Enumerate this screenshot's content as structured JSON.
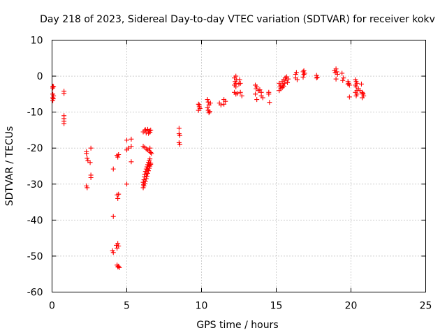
{
  "chart_data": {
    "type": "scatter",
    "title": "Day 218 of 2023, Sidereal Day-to-day VTEC variation (SDTVAR) for receiver kokv",
    "xlabel": "GPS time / hours",
    "ylabel": "SDTVAR / TECUs",
    "xlim": [
      0,
      25
    ],
    "ylim": [
      -60,
      10
    ],
    "xticks": [
      0,
      5,
      10,
      15,
      20,
      25
    ],
    "yticks": [
      10,
      0,
      -10,
      -20,
      -30,
      -40,
      -50,
      -60
    ],
    "grid": true,
    "marker": "+",
    "marker_color": "#ff0000",
    "series": [
      {
        "name": "SDTVAR",
        "points": [
          [
            0.05,
            -2.8
          ],
          [
            0.05,
            -3.3
          ],
          [
            0.05,
            -5.0
          ],
          [
            0.05,
            -6.0
          ],
          [
            0.05,
            -6.8
          ],
          [
            0.1,
            -2.9
          ],
          [
            0.1,
            -5.5
          ],
          [
            0.08,
            -6.3
          ],
          [
            0.8,
            -4.2
          ],
          [
            0.8,
            -4.8
          ],
          [
            0.8,
            -11.0
          ],
          [
            0.8,
            -11.8
          ],
          [
            0.8,
            -12.5
          ],
          [
            0.8,
            -13.2
          ],
          [
            2.3,
            -21.0
          ],
          [
            2.3,
            -21.5
          ],
          [
            2.35,
            -22.8
          ],
          [
            2.4,
            -23.5
          ],
          [
            2.55,
            -24.0
          ],
          [
            2.6,
            -20.0
          ],
          [
            2.6,
            -27.5
          ],
          [
            2.6,
            -28.2
          ],
          [
            2.3,
            -30.5
          ],
          [
            2.35,
            -31.0
          ],
          [
            4.1,
            -25.8
          ],
          [
            4.1,
            -39.0
          ],
          [
            4.05,
            -48.5
          ],
          [
            4.1,
            -49.0
          ],
          [
            4.35,
            -22.0
          ],
          [
            4.4,
            -22.5
          ],
          [
            4.45,
            -21.8
          ],
          [
            4.35,
            -33.0
          ],
          [
            4.4,
            -34.0
          ],
          [
            4.45,
            -32.8
          ],
          [
            4.3,
            -47.0
          ],
          [
            4.35,
            -47.8
          ],
          [
            4.4,
            -46.5
          ],
          [
            4.45,
            -47.2
          ],
          [
            4.35,
            -52.5
          ],
          [
            4.4,
            -53.0
          ],
          [
            4.45,
            -52.8
          ],
          [
            4.5,
            -53.2
          ],
          [
            5.0,
            -17.8
          ],
          [
            5.0,
            -20.5
          ],
          [
            5.1,
            -20.0
          ],
          [
            5.0,
            -30.0
          ],
          [
            5.3,
            -17.5
          ],
          [
            5.3,
            -19.5
          ],
          [
            5.3,
            -23.8
          ],
          [
            6.1,
            -15.5
          ],
          [
            6.2,
            -15.0
          ],
          [
            6.3,
            -15.8
          ],
          [
            6.4,
            -14.8
          ],
          [
            6.5,
            -15.2
          ],
          [
            6.55,
            -15.6
          ],
          [
            6.6,
            -15.0
          ],
          [
            6.25,
            -14.9
          ],
          [
            6.45,
            -15.9
          ],
          [
            6.1,
            -19.5
          ],
          [
            6.2,
            -19.8
          ],
          [
            6.3,
            -20.2
          ],
          [
            6.4,
            -20.5
          ],
          [
            6.5,
            -20.8
          ],
          [
            6.6,
            -21.2
          ],
          [
            6.65,
            -21.5
          ],
          [
            6.55,
            -20.0
          ],
          [
            6.1,
            -29.5
          ],
          [
            6.12,
            -30.2
          ],
          [
            6.1,
            -31.0
          ],
          [
            6.15,
            -28.8
          ],
          [
            6.18,
            -28.0
          ],
          [
            6.2,
            -27.3
          ],
          [
            6.25,
            -26.5
          ],
          [
            6.3,
            -25.8
          ],
          [
            6.35,
            -25.2
          ],
          [
            6.4,
            -24.6
          ],
          [
            6.45,
            -24.0
          ],
          [
            6.5,
            -23.5
          ],
          [
            6.55,
            -23.0
          ],
          [
            6.6,
            -24.2
          ],
          [
            6.25,
            -29.2
          ],
          [
            6.3,
            -28.5
          ],
          [
            6.35,
            -27.8
          ],
          [
            6.4,
            -27.0
          ],
          [
            6.45,
            -26.3
          ],
          [
            6.5,
            -25.6
          ],
          [
            6.55,
            -25.0
          ],
          [
            6.6,
            -24.5
          ],
          [
            6.15,
            -30.5
          ],
          [
            6.2,
            -29.8
          ],
          [
            6.3,
            -27.2
          ],
          [
            6.4,
            -26.0
          ],
          [
            6.5,
            -24.8
          ],
          [
            8.5,
            -14.5
          ],
          [
            8.5,
            -16.0
          ],
          [
            8.55,
            -16.5
          ],
          [
            8.5,
            -18.5
          ],
          [
            8.55,
            -19.0
          ],
          [
            9.8,
            -7.8
          ],
          [
            9.85,
            -8.5
          ],
          [
            9.9,
            -9.0
          ],
          [
            9.8,
            -9.5
          ],
          [
            9.85,
            -8.0
          ],
          [
            10.4,
            -6.5
          ],
          [
            10.45,
            -7.2
          ],
          [
            10.5,
            -8.0
          ],
          [
            10.4,
            -8.8
          ],
          [
            10.45,
            -9.5
          ],
          [
            10.5,
            -10.2
          ],
          [
            10.55,
            -9.8
          ],
          [
            10.6,
            -7.5
          ],
          [
            11.2,
            -7.5
          ],
          [
            11.3,
            -8.0
          ],
          [
            11.5,
            -6.5
          ],
          [
            11.6,
            -7.0
          ],
          [
            11.5,
            -7.8
          ],
          [
            12.2,
            -0.5
          ],
          [
            12.25,
            -1.5
          ],
          [
            12.3,
            -2.0
          ],
          [
            12.35,
            -1.0
          ],
          [
            12.2,
            -2.5
          ],
          [
            12.3,
            -3.0
          ],
          [
            12.2,
            -4.5
          ],
          [
            12.3,
            -5.0
          ],
          [
            12.4,
            -4.8
          ],
          [
            12.5,
            -2.2
          ],
          [
            12.55,
            -1.0
          ],
          [
            12.6,
            -2.0
          ],
          [
            12.6,
            -4.5
          ],
          [
            12.7,
            -5.5
          ],
          [
            12.3,
            0.0
          ],
          [
            13.6,
            -2.5
          ],
          [
            13.7,
            -3.0
          ],
          [
            13.65,
            -3.5
          ],
          [
            13.6,
            -5.0
          ],
          [
            13.7,
            -6.5
          ],
          [
            13.8,
            -4.0
          ],
          [
            13.9,
            -3.8
          ],
          [
            14.0,
            -4.5
          ],
          [
            14.0,
            -5.5
          ],
          [
            14.1,
            -6.0
          ],
          [
            14.5,
            -5.0
          ],
          [
            14.55,
            -7.3
          ],
          [
            14.5,
            -4.5
          ],
          [
            15.2,
            -2.0
          ],
          [
            15.25,
            -3.0
          ],
          [
            15.3,
            -3.5
          ],
          [
            15.2,
            -4.0
          ],
          [
            15.3,
            -2.5
          ],
          [
            15.4,
            -1.5
          ],
          [
            15.45,
            -2.5
          ],
          [
            15.5,
            -1.0
          ],
          [
            15.55,
            -2.0
          ],
          [
            15.6,
            -0.5
          ],
          [
            15.65,
            -1.2
          ],
          [
            15.7,
            -0.2
          ],
          [
            15.75,
            -1.8
          ],
          [
            15.8,
            -0.8
          ],
          [
            15.4,
            -3.2
          ],
          [
            15.5,
            -2.8
          ],
          [
            16.3,
            0.5
          ],
          [
            16.35,
            1.0
          ],
          [
            16.3,
            -0.5
          ],
          [
            16.4,
            -1.0
          ],
          [
            16.8,
            1.2
          ],
          [
            16.85,
            0.5
          ],
          [
            16.8,
            -0.3
          ],
          [
            16.9,
            0.8
          ],
          [
            16.85,
            1.5
          ],
          [
            17.7,
            0.2
          ],
          [
            17.75,
            -0.3
          ],
          [
            17.7,
            -0.5
          ],
          [
            18.9,
            1.5
          ],
          [
            18.95,
            1.0
          ],
          [
            19.0,
            2.0
          ],
          [
            19.05,
            1.2
          ],
          [
            19.1,
            0.5
          ],
          [
            19.0,
            -0.8
          ],
          [
            19.4,
            0.8
          ],
          [
            19.5,
            -0.5
          ],
          [
            19.45,
            -1.2
          ],
          [
            19.8,
            -1.5
          ],
          [
            19.85,
            -2.0
          ],
          [
            19.9,
            -2.5
          ],
          [
            19.8,
            -2.2
          ],
          [
            19.9,
            -5.8
          ],
          [
            20.3,
            -1.0
          ],
          [
            20.35,
            -1.5
          ],
          [
            20.4,
            -2.0
          ],
          [
            20.3,
            -2.5
          ],
          [
            20.35,
            -3.0
          ],
          [
            20.4,
            -4.0
          ],
          [
            20.3,
            -4.5
          ],
          [
            20.4,
            -5.0
          ],
          [
            20.35,
            -5.5
          ],
          [
            20.5,
            -3.5
          ],
          [
            20.6,
            -4.0
          ],
          [
            20.7,
            -2.2
          ],
          [
            20.75,
            -4.5
          ],
          [
            20.8,
            -5.0
          ],
          [
            20.85,
            -5.5
          ],
          [
            20.75,
            -6.0
          ],
          [
            20.8,
            -4.8
          ]
        ]
      }
    ]
  }
}
